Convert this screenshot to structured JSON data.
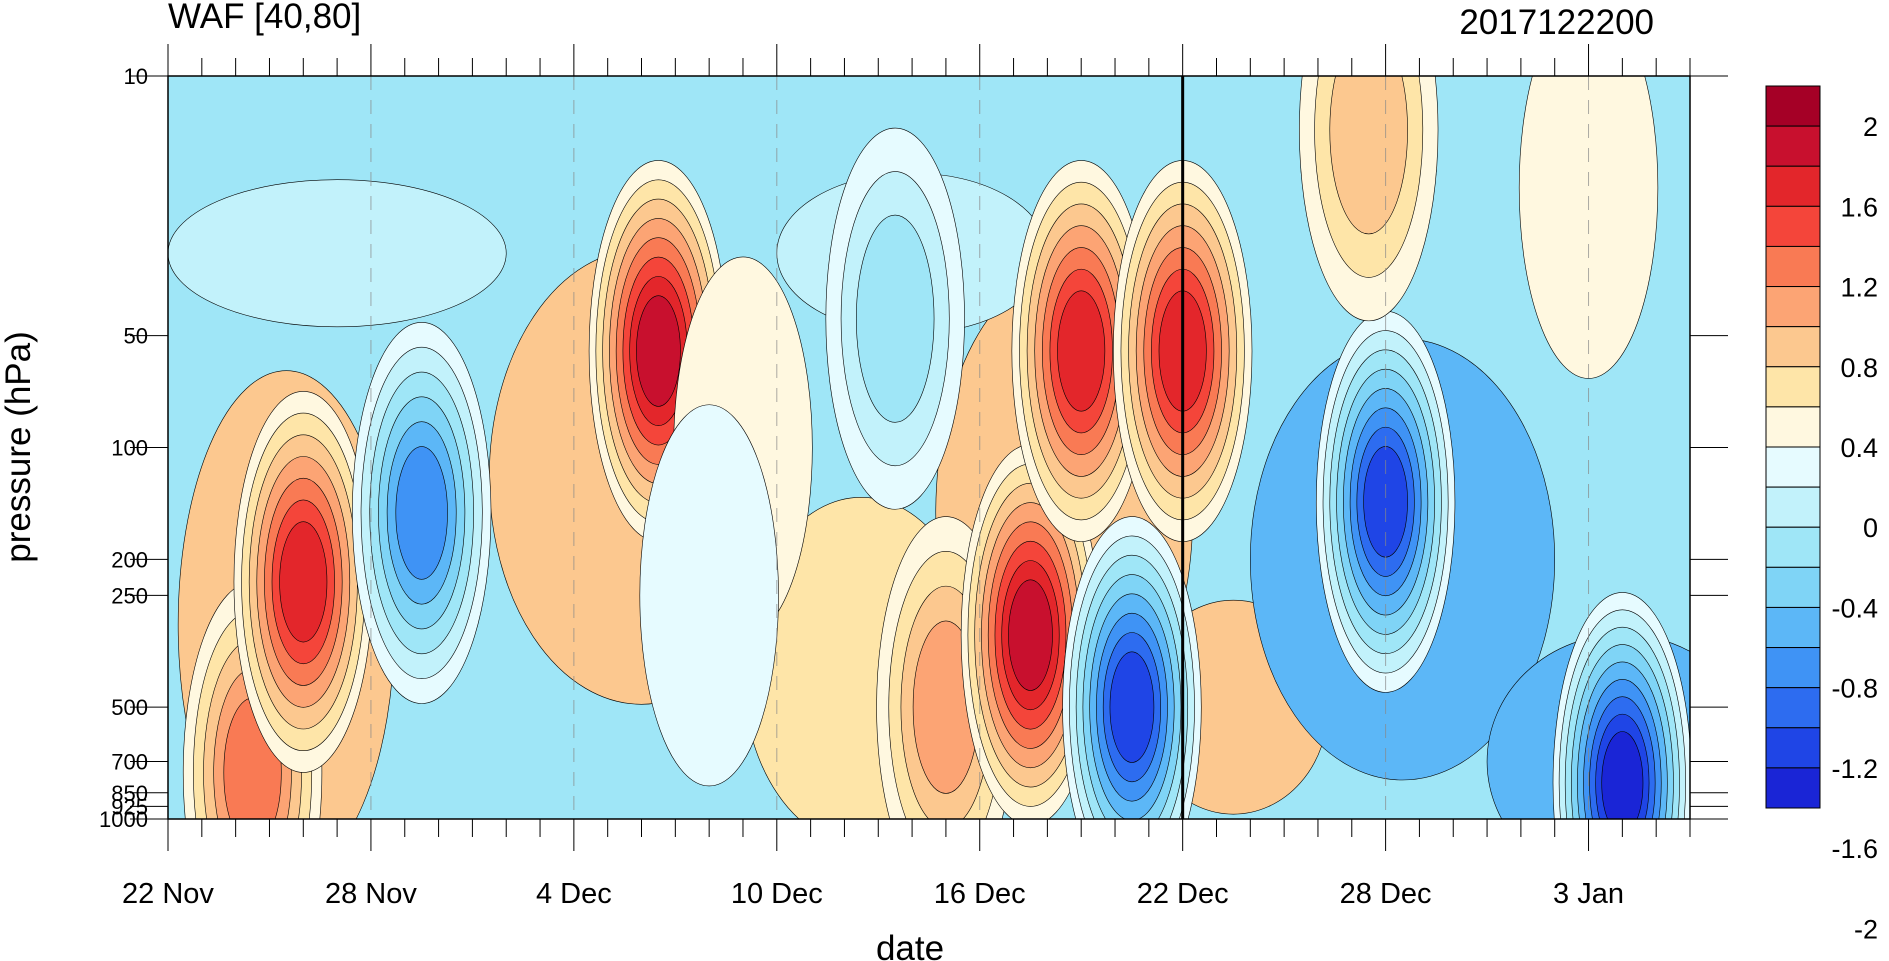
{
  "chart_data": {
    "type": "heatmap",
    "subtype": "filled-contour",
    "title_left": "WAF [40,80]",
    "title_right": "2017122200",
    "xlabel": "date",
    "ylabel": "pressure (hPa)",
    "x_tick_labels": [
      {
        "day": 0,
        "label": "22 Nov"
      },
      {
        "day": 6,
        "label": "28 Nov"
      },
      {
        "day": 12,
        "label": "4 Dec"
      },
      {
        "day": 18,
        "label": "10 Dec"
      },
      {
        "day": 24,
        "label": "16 Dec"
      },
      {
        "day": 30,
        "label": "22 Dec"
      },
      {
        "day": 36,
        "label": "28 Dec"
      },
      {
        "day": 42,
        "label": "3 Jan"
      }
    ],
    "x_days_total": 45,
    "y_scale": "log",
    "y_range_hPa": [
      10,
      1000
    ],
    "y_ticks_hPa": [
      10,
      50,
      100,
      200,
      250,
      500,
      700,
      850,
      925,
      1000
    ],
    "y_tick_labels": [
      "10",
      "50",
      "100",
      "200",
      "250",
      "500",
      "700",
      "850",
      "925",
      "1000"
    ],
    "reference_line_day": 30,
    "colorbar": {
      "labels": [
        "2",
        "1.6",
        "1.2",
        "0.8",
        "0.4",
        "0",
        "-0.4",
        "-0.8",
        "-1.2",
        "-1.6",
        "-2"
      ],
      "colors": [
        "#a50026",
        "#c8102e",
        "#e3262b",
        "#f4453a",
        "#f97a54",
        "#fca474",
        "#fcc88f",
        "#fee5a8",
        "#fff8e0",
        "#e6fbff",
        "#c2f2fb",
        "#9fe6f7",
        "#7fd4f6",
        "#5cb7f7",
        "#3f93f5",
        "#2d6cf0",
        "#1f45e6",
        "#1a25d6"
      ]
    },
    "features": [
      {
        "day": 2.5,
        "p": 750,
        "value": 1.0
      },
      {
        "day": 4.0,
        "p": 230,
        "value": 1.4
      },
      {
        "day": 7.5,
        "p": 150,
        "value": -1.2
      },
      {
        "day": 14.5,
        "p": 55,
        "value": 1.6
      },
      {
        "day": 17.0,
        "p": 100,
        "value": 0.0
      },
      {
        "day": 16.0,
        "p": 250,
        "value": -0.2
      },
      {
        "day": 21.5,
        "p": 45,
        "value": -0.5
      },
      {
        "day": 23.0,
        "p": 500,
        "value": 0.8
      },
      {
        "day": 25.5,
        "p": 320,
        "value": 1.6
      },
      {
        "day": 27.0,
        "p": 55,
        "value": 1.3
      },
      {
        "day": 30.0,
        "p": 55,
        "value": 1.4
      },
      {
        "day": 28.5,
        "p": 500,
        "value": -1.6
      },
      {
        "day": 36.0,
        "p": 140,
        "value": -1.5
      },
      {
        "day": 43.0,
        "p": 800,
        "value": -1.7
      },
      {
        "day": 35.5,
        "p": 14,
        "value": 0.5
      },
      {
        "day": 42.0,
        "p": 20,
        "value": 0.1
      }
    ]
  }
}
